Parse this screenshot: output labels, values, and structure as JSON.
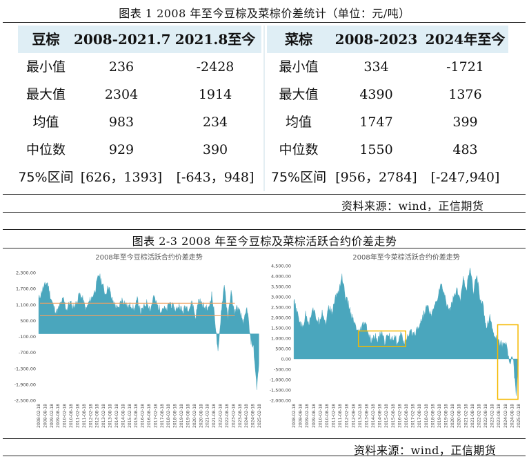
{
  "fig1": {
    "caption": "图表 1   2008 年至今豆棕及菜棕价差统计（单位：元/吨）",
    "source": "资料来源：wind，正信期货",
    "left_table": {
      "headers": [
        "豆棕",
        "2008-2021.7",
        "2021.8至今"
      ],
      "rows": [
        {
          "label": "最小值",
          "a": "236",
          "b": "-2428"
        },
        {
          "label": "最大值",
          "a": "2304",
          "b": "1914"
        },
        {
          "label": "均值",
          "a": "983",
          "b": "234"
        },
        {
          "label": "中位数",
          "a": "929",
          "b": "390"
        },
        {
          "label": "75%区间",
          "a": "[626，1393]",
          "b": "[-643，948]"
        }
      ]
    },
    "right_table": {
      "headers": [
        "菜棕",
        "2008-2023",
        "2024年至今"
      ],
      "rows": [
        {
          "label": "最小值",
          "a": "334",
          "b": "-1721"
        },
        {
          "label": "最大值",
          "a": "4390",
          "b": "1376"
        },
        {
          "label": "均值",
          "a": "1747",
          "b": "399"
        },
        {
          "label": "中位数",
          "a": "1550",
          "b": "483"
        },
        {
          "label": "75%区间",
          "a": "[956，2784]",
          "b": "[-247,940]"
        }
      ]
    }
  },
  "fig2": {
    "caption": "图表 2-3 2008 年至今豆棕及菜棕活跃合约价差走势",
    "source": "资料来源：wind，正信期货"
  },
  "colors": {
    "area": "#4aa6bd",
    "reference_line": "#f0a060",
    "highlight_box": "#f5b800",
    "table_header": "#dfeef5"
  },
  "chart_data": [
    {
      "type": "area",
      "title": "2008年至今豆棕活跃合约价差走势",
      "ylim": [
        -2500,
        2300
      ],
      "y_ticks": [
        "2,300.00",
        "1,700.00",
        "1,100.00",
        "500.00",
        "-100.00",
        "-700.00",
        "-1,300.00",
        "-1,900.00",
        "-2,500.00"
      ],
      "y_tick_values": [
        2300,
        1700,
        1100,
        500,
        -100,
        -700,
        -1300,
        -1900,
        -2500
      ],
      "x_ticks": [
        "2008-02-18",
        "2008-08-18",
        "2009-02-18",
        "2009-08-18",
        "2010-02-18",
        "2010-08-18",
        "2011-02-18",
        "2011-08-18",
        "2012-02-18",
        "2012-08-18",
        "2013-02-18",
        "2013-08-18",
        "2014-02-18",
        "2014-08-18",
        "2015-02-18",
        "2015-08-18",
        "2016-02-18",
        "2016-08-18",
        "2017-02-18",
        "2017-08-18",
        "2018-02-18",
        "2018-08-18",
        "2019-02-18",
        "2019-08-18",
        "2020-02-18",
        "2020-08-18",
        "2021-02-18",
        "2021-08-18",
        "2022-02-18",
        "2022-08-18",
        "2023-02-18",
        "2023-08-18",
        "2024-02-18",
        "2024-08-18",
        "2025-02-18"
      ],
      "reference_lines": [
        1150,
        680
      ],
      "grid": false,
      "series": [
        {
          "x": [
            "2008-02",
            "2008-06",
            "2008-10",
            "2009-01",
            "2009-04",
            "2009-07",
            "2009-10",
            "2010-01",
            "2010-04",
            "2010-07",
            "2010-10",
            "2011-01",
            "2011-04",
            "2011-07",
            "2011-10",
            "2012-01",
            "2012-04",
            "2012-07",
            "2012-10",
            "2013-01",
            "2013-04",
            "2013-07",
            "2013-10",
            "2014-01",
            "2014-04",
            "2014-07",
            "2014-10",
            "2015-01",
            "2015-04",
            "2015-07",
            "2015-10",
            "2016-01",
            "2016-04",
            "2016-07",
            "2016-10",
            "2017-01",
            "2017-04",
            "2017-07",
            "2017-10",
            "2018-01",
            "2018-04",
            "2018-07",
            "2018-10",
            "2019-01",
            "2019-04",
            "2019-07",
            "2019-10",
            "2020-01",
            "2020-04",
            "2020-07",
            "2020-10",
            "2021-01",
            "2021-04",
            "2021-07",
            "2021-10",
            "2022-01",
            "2022-04",
            "2022-07",
            "2022-10",
            "2023-01",
            "2023-04",
            "2023-07",
            "2023-10",
            "2024-01",
            "2024-04",
            "2024-07",
            "2024-10",
            "2025-01",
            "2025-03"
          ],
          "values": [
            1300,
            1700,
            1950,
            1400,
            1000,
            800,
            1100,
            1300,
            900,
            1200,
            1000,
            1150,
            1500,
            1300,
            900,
            1200,
            1400,
            1700,
            2250,
            1900,
            1500,
            1800,
            1300,
            1100,
            900,
            1300,
            1200,
            1000,
            1100,
            900,
            1300,
            800,
            1000,
            1200,
            900,
            1400,
            1100,
            900,
            1000,
            850,
            1200,
            1000,
            900,
            1100,
            800,
            1050,
            950,
            1200,
            600,
            1300,
            1100,
            1000,
            900,
            1500,
            600,
            -800,
            900,
            1900,
            500,
            1600,
            800,
            1000,
            700,
            400,
            1000,
            -200,
            -500,
            -2000,
            -1200
          ]
        }
      ]
    },
    {
      "type": "area",
      "title": "2008年至今菜棕活跃合约价差走势",
      "ylim": [
        -2000,
        4500
      ],
      "y_ticks": [
        "4,500.00",
        "4,000.00",
        "3,500.00",
        "3,000.00",
        "2,500.00",
        "2,000.00",
        "1,500.00",
        "1,000.00",
        "500.00",
        "0.00",
        "-500.00",
        "-1,000.00",
        "-1,500.00",
        "-2,000.00"
      ],
      "y_tick_values": [
        4500,
        4000,
        3500,
        3000,
        2500,
        2000,
        1500,
        1000,
        500,
        0,
        -500,
        -1000,
        -1500,
        -2000
      ],
      "x_ticks": [
        "2008-02-18",
        "2008-08-18",
        "2009-02-18",
        "2009-08-18",
        "2010-02-18",
        "2010-08-18",
        "2011-02-18",
        "2011-08-18",
        "2012-02-18",
        "2012-08-18",
        "2013-02-18",
        "2013-08-18",
        "2014-02-18",
        "2014-08-18",
        "2015-02-18",
        "2015-08-18",
        "2016-02-18",
        "2016-08-18",
        "2017-02-18",
        "2017-08-18",
        "2018-02-18",
        "2018-08-18",
        "2019-02-18",
        "2019-08-18",
        "2020-02-18",
        "2020-08-18",
        "2021-02-18",
        "2021-08-18",
        "2022-02-18",
        "2022-08-18",
        "2023-02-18",
        "2023-08-18",
        "2024-02-18",
        "2024-08-18",
        "2025-02-18"
      ],
      "grid": false,
      "series": [
        {
          "x": [
            "2008-02",
            "2008-06",
            "2008-10",
            "2009-01",
            "2009-04",
            "2009-07",
            "2009-10",
            "2010-01",
            "2010-04",
            "2010-07",
            "2010-10",
            "2011-01",
            "2011-04",
            "2011-07",
            "2011-10",
            "2012-01",
            "2012-04",
            "2012-07",
            "2012-10",
            "2013-01",
            "2013-04",
            "2013-07",
            "2013-10",
            "2014-01",
            "2014-04",
            "2014-07",
            "2014-10",
            "2015-01",
            "2015-04",
            "2015-07",
            "2015-10",
            "2016-01",
            "2016-04",
            "2016-07",
            "2016-10",
            "2017-01",
            "2017-04",
            "2017-07",
            "2017-10",
            "2018-01",
            "2018-04",
            "2018-07",
            "2018-10",
            "2019-01",
            "2019-04",
            "2019-07",
            "2019-10",
            "2020-01",
            "2020-04",
            "2020-07",
            "2020-10",
            "2021-01",
            "2021-04",
            "2021-07",
            "2021-10",
            "2022-01",
            "2022-04",
            "2022-07",
            "2022-10",
            "2023-01",
            "2023-04",
            "2023-07",
            "2023-10",
            "2024-01",
            "2024-04",
            "2024-07",
            "2024-10",
            "2025-01",
            "2025-03"
          ],
          "values": [
            2800,
            2000,
            1500,
            2200,
            1700,
            2500,
            2000,
            1800,
            2300,
            1700,
            2500,
            2200,
            3000,
            3300,
            4000,
            3000,
            2600,
            2000,
            1600,
            1200,
            1500,
            1800,
            1200,
            800,
            1100,
            900,
            1300,
            800,
            1200,
            1000,
            1100,
            700,
            1200,
            800,
            1000,
            1300,
            1200,
            1500,
            1800,
            2200,
            2600,
            2100,
            2400,
            2900,
            3600,
            3200,
            2600,
            2400,
            3000,
            3300,
            2800,
            3900,
            3400,
            4390,
            3200,
            4100,
            3000,
            2500,
            1500,
            2100,
            1300,
            1000,
            800,
            600,
            900,
            -300,
            200,
            -1700,
            -500
          ]
        }
      ],
      "annotations": [
        "highlight-box-2013-2017",
        "highlight-box-2024-2025"
      ]
    }
  ]
}
